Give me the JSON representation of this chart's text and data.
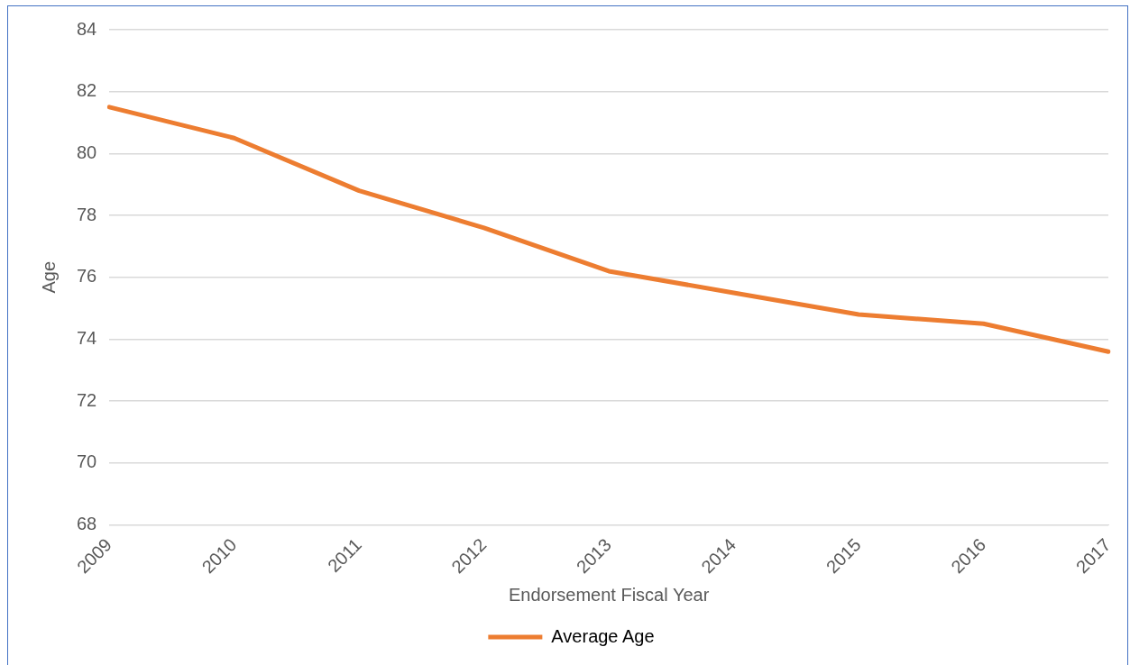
{
  "chart_data": {
    "type": "line",
    "xlabel": "Endorsement Fiscal Year",
    "ylabel": "Age",
    "categories": [
      "2009",
      "2010",
      "2011",
      "2012",
      "2013",
      "2014",
      "2015",
      "2016",
      "2017"
    ],
    "series": [
      {
        "name": "Average Age",
        "color": "#ed7d31",
        "values": [
          81.5,
          80.5,
          78.8,
          77.6,
          76.2,
          75.5,
          74.8,
          74.5,
          73.6
        ]
      }
    ],
    "ylim": [
      68,
      84
    ],
    "yticks": [
      68,
      70,
      72,
      74,
      76,
      78,
      80,
      82,
      84
    ],
    "grid": "y",
    "legend": "bottom",
    "marker": "none",
    "line_style": "solid"
  }
}
